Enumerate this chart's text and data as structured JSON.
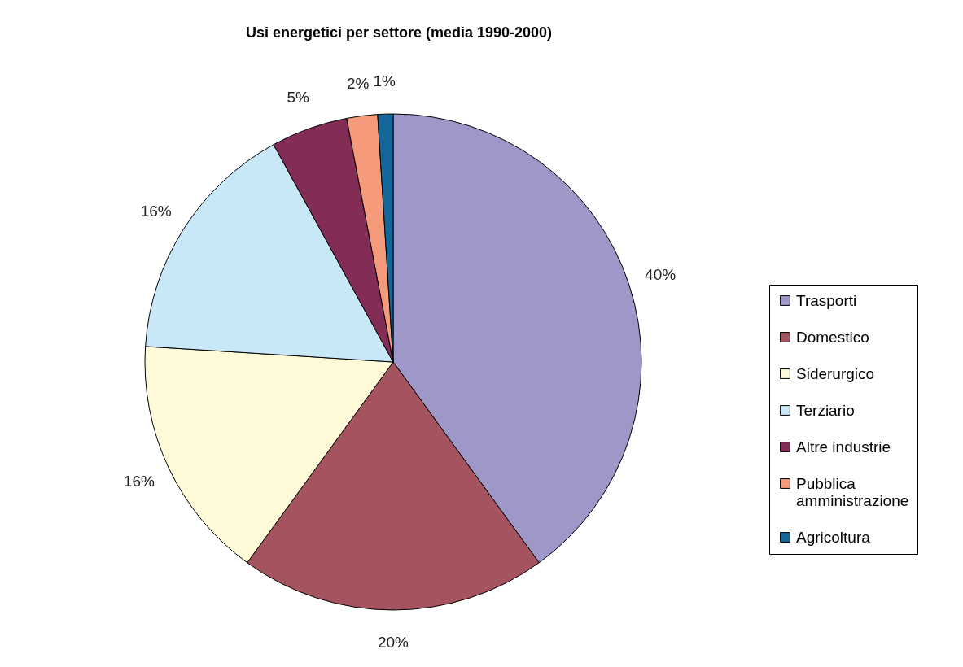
{
  "chart_data": {
    "type": "pie",
    "title": "Usi energetici per settore (media 1990-2000)",
    "categories": [
      "Trasporti",
      "Domestico",
      "Siderurgico",
      "Terziario",
      "Altre industrie",
      "Pubblica amministrazione",
      "Agricoltura"
    ],
    "values": [
      40,
      20,
      16,
      16,
      5,
      2,
      1
    ],
    "colors": [
      "#9e98c8",
      "#a5535e",
      "#fefad8",
      "#c8e8f8",
      "#832c55",
      "#f59a7b",
      "#13679a"
    ],
    "value_labels": [
      "40%",
      "20%",
      "16%",
      "16%",
      "5%",
      "2%",
      "1%"
    ],
    "legend": "right"
  }
}
